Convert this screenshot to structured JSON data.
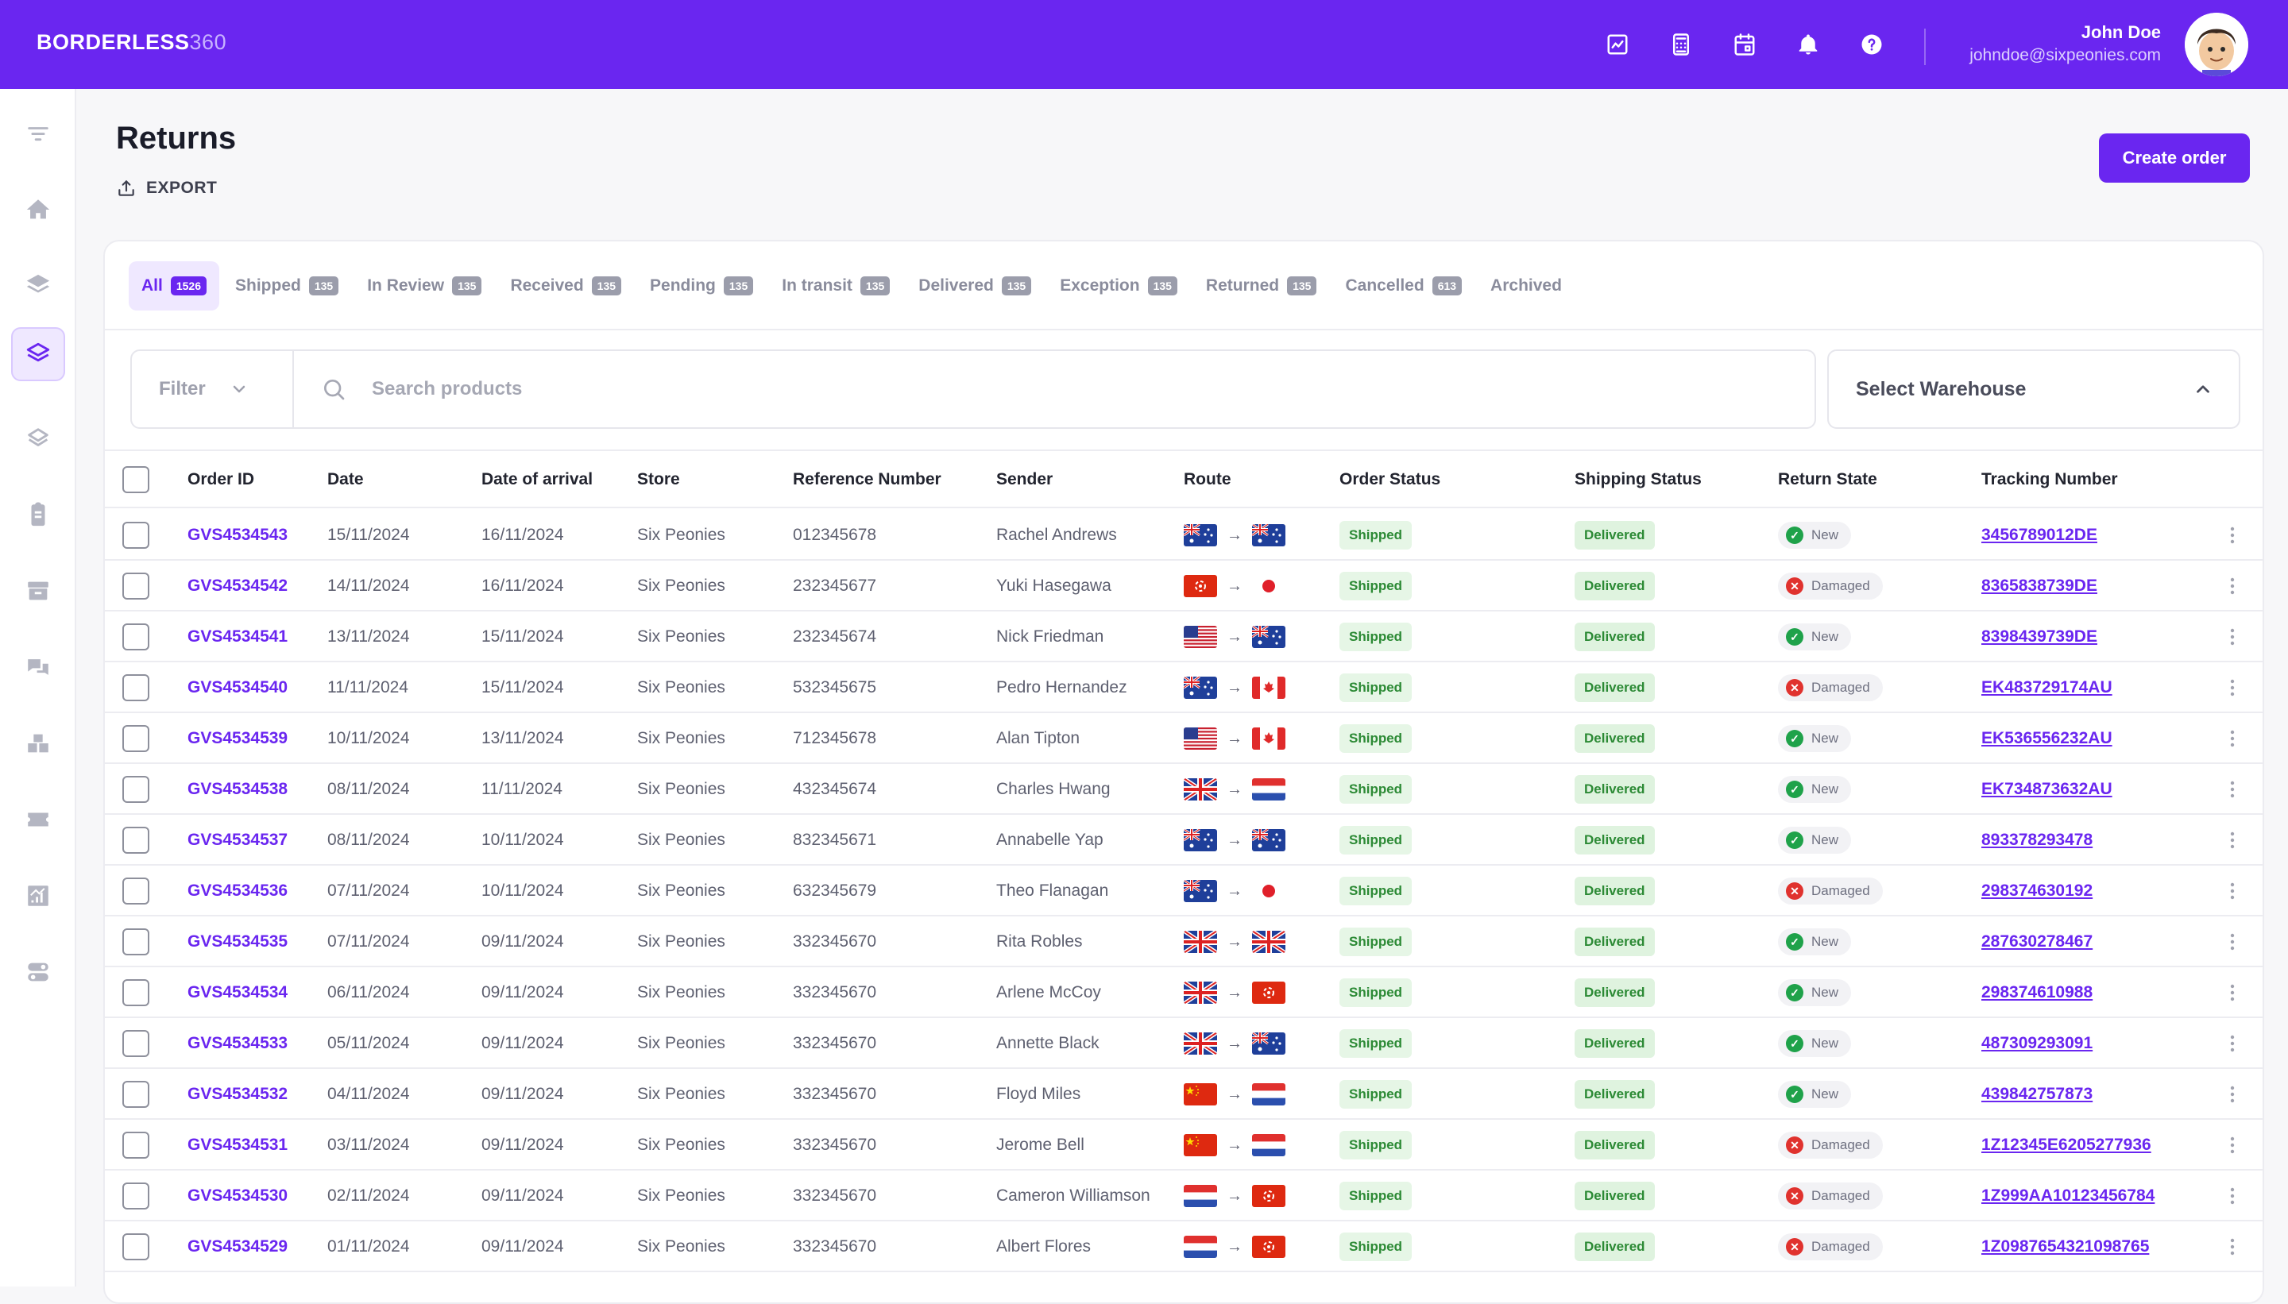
{
  "app": {
    "brand_bold": "BORDERLESS",
    "brand_thin": "360",
    "user_name": "John Doe",
    "user_email": "johndoe@sixpeonies.com",
    "accent": "#6a26f0"
  },
  "top_icons": [
    "chart-icon",
    "calculator-icon",
    "calendar-icon",
    "bell-icon",
    "help-icon"
  ],
  "sidebar_icons": [
    "filter-lines-icon",
    "home-icon",
    "layers-icon",
    "layers-active-icon",
    "layers-outline-icon",
    "clipboard-icon",
    "archive-icon",
    "chat-icon",
    "boxes-icon",
    "ticket-icon",
    "analytics-icon",
    "toggle-icon"
  ],
  "page": {
    "title": "Returns",
    "export_label": "EXPORT",
    "create_label": "Create order"
  },
  "tabs": [
    {
      "label": "All",
      "count": "1526"
    },
    {
      "label": "Shipped",
      "count": "135"
    },
    {
      "label": "In Review",
      "count": "135"
    },
    {
      "label": "Received",
      "count": "135"
    },
    {
      "label": "Pending",
      "count": "135"
    },
    {
      "label": "In transit",
      "count": "135"
    },
    {
      "label": "Delivered",
      "count": "135"
    },
    {
      "label": "Exception",
      "count": "135"
    },
    {
      "label": "Returned",
      "count": "135"
    },
    {
      "label": "Cancelled",
      "count": "613"
    },
    {
      "label": "Archived",
      "count": ""
    }
  ],
  "toolbar": {
    "filter_label": "Filter",
    "search_placeholder": "Search products",
    "warehouse_label": "Select Warehouse"
  },
  "table": {
    "columns": [
      "Order ID",
      "Date",
      "Date of arrival",
      "Store",
      "Reference Number",
      "Sender",
      "Route",
      "Order Status",
      "Shipping Status",
      "Return State",
      "Tracking Number"
    ],
    "rows": [
      {
        "order_id": "GVS4534543",
        "date": "15/11/2024",
        "arrival": "16/11/2024",
        "store": "Six Peonies",
        "reference": "012345678",
        "sender": "Rachel Andrews",
        "route_from": "AU",
        "route_to": "AU",
        "order_status": "Shipped",
        "shipping_status": "Delivered",
        "return_state": "New",
        "tracking": "3456789012DE"
      },
      {
        "order_id": "GVS4534542",
        "date": "14/11/2024",
        "arrival": "16/11/2024",
        "store": "Six Peonies",
        "reference": "232345677",
        "sender": "Yuki Hasegawa",
        "route_from": "HK",
        "route_to": "JP",
        "order_status": "Shipped",
        "shipping_status": "Delivered",
        "return_state": "Damaged",
        "tracking": "8365838739DE"
      },
      {
        "order_id": "GVS4534541",
        "date": "13/11/2024",
        "arrival": "15/11/2024",
        "store": "Six Peonies",
        "reference": "232345674",
        "sender": "Nick Friedman",
        "route_from": "US",
        "route_to": "AU",
        "order_status": "Shipped",
        "shipping_status": "Delivered",
        "return_state": "New",
        "tracking": "8398439739DE"
      },
      {
        "order_id": "GVS4534540",
        "date": "11/11/2024",
        "arrival": "15/11/2024",
        "store": "Six Peonies",
        "reference": "532345675",
        "sender": "Pedro Hernandez",
        "route_from": "AU",
        "route_to": "CA",
        "order_status": "Shipped",
        "shipping_status": "Delivered",
        "return_state": "Damaged",
        "tracking": "EK483729174AU"
      },
      {
        "order_id": "GVS4534539",
        "date": "10/11/2024",
        "arrival": "13/11/2024",
        "store": "Six Peonies",
        "reference": "712345678",
        "sender": "Alan Tipton",
        "route_from": "US",
        "route_to": "CA",
        "order_status": "Shipped",
        "shipping_status": "Delivered",
        "return_state": "New",
        "tracking": "EK536556232AU"
      },
      {
        "order_id": "GVS4534538",
        "date": "08/11/2024",
        "arrival": "11/11/2024",
        "store": "Six Peonies",
        "reference": "432345674",
        "sender": "Charles Hwang",
        "route_from": "GB",
        "route_to": "NL",
        "order_status": "Shipped",
        "shipping_status": "Delivered",
        "return_state": "New",
        "tracking": "EK734873632AU"
      },
      {
        "order_id": "GVS4534537",
        "date": "08/11/2024",
        "arrival": "10/11/2024",
        "store": "Six Peonies",
        "reference": "832345671",
        "sender": "Annabelle Yap",
        "route_from": "AU",
        "route_to": "AU",
        "order_status": "Shipped",
        "shipping_status": "Delivered",
        "return_state": "New",
        "tracking": "893378293478"
      },
      {
        "order_id": "GVS4534536",
        "date": "07/11/2024",
        "arrival": "10/11/2024",
        "store": "Six Peonies",
        "reference": "632345679",
        "sender": "Theo Flanagan",
        "route_from": "AU",
        "route_to": "JP",
        "order_status": "Shipped",
        "shipping_status": "Delivered",
        "return_state": "Damaged",
        "tracking": "298374630192"
      },
      {
        "order_id": "GVS4534535",
        "date": "07/11/2024",
        "arrival": "09/11/2024",
        "store": "Six Peonies",
        "reference": "332345670",
        "sender": "Rita Robles",
        "route_from": "GB",
        "route_to": "GB",
        "order_status": "Shipped",
        "shipping_status": "Delivered",
        "return_state": "New",
        "tracking": "287630278467"
      },
      {
        "order_id": "GVS4534534",
        "date": "06/11/2024",
        "arrival": "09/11/2024",
        "store": "Six Peonies",
        "reference": "332345670",
        "sender": "Arlene McCoy",
        "route_from": "GB",
        "route_to": "HK",
        "order_status": "Shipped",
        "shipping_status": "Delivered",
        "return_state": "New",
        "tracking": "298374610988"
      },
      {
        "order_id": "GVS4534533",
        "date": "05/11/2024",
        "arrival": "09/11/2024",
        "store": "Six Peonies",
        "reference": "332345670",
        "sender": "Annette Black",
        "route_from": "GB",
        "route_to": "AU",
        "order_status": "Shipped",
        "shipping_status": "Delivered",
        "return_state": "New",
        "tracking": "487309293091"
      },
      {
        "order_id": "GVS4534532",
        "date": "04/11/2024",
        "arrival": "09/11/2024",
        "store": "Six Peonies",
        "reference": "332345670",
        "sender": "Floyd Miles",
        "route_from": "CN",
        "route_to": "NL",
        "order_status": "Shipped",
        "shipping_status": "Delivered",
        "return_state": "New",
        "tracking": "439842757873"
      },
      {
        "order_id": "GVS4534531",
        "date": "03/11/2024",
        "arrival": "09/11/2024",
        "store": "Six Peonies",
        "reference": "332345670",
        "sender": "Jerome Bell",
        "route_from": "CN",
        "route_to": "NL",
        "order_status": "Shipped",
        "shipping_status": "Delivered",
        "return_state": "Damaged",
        "tracking": "1Z12345E6205277936"
      },
      {
        "order_id": "GVS4534530",
        "date": "02/11/2024",
        "arrival": "09/11/2024",
        "store": "Six Peonies",
        "reference": "332345670",
        "sender": "Cameron Williamson",
        "route_from": "NL",
        "route_to": "HK",
        "order_status": "Shipped",
        "shipping_status": "Delivered",
        "return_state": "Damaged",
        "tracking": "1Z999AA10123456784"
      },
      {
        "order_id": "GVS4534529",
        "date": "01/11/2024",
        "arrival": "09/11/2024",
        "store": "Six Peonies",
        "reference": "332345670",
        "sender": "Albert Flores",
        "route_from": "NL",
        "route_to": "HK",
        "order_status": "Shipped",
        "shipping_status": "Delivered",
        "return_state": "Damaged",
        "tracking": "1Z0987654321098765"
      }
    ]
  }
}
